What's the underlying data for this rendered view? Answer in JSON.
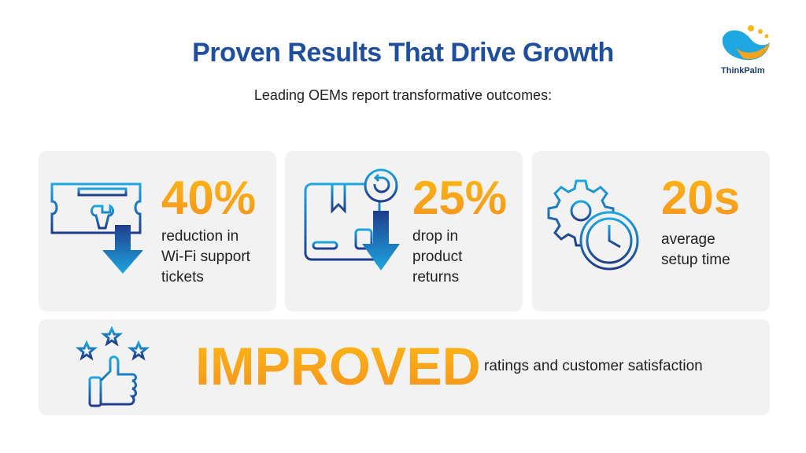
{
  "header": {
    "title": "Proven Results That Drive Growth",
    "subtitle": "Leading OEMs report transformative outcomes:"
  },
  "logo": {
    "text": "ThinkPalm"
  },
  "cards": [
    {
      "stat": "40%",
      "lines": [
        "reduction in",
        "Wi-Fi support",
        "tickets"
      ]
    },
    {
      "stat": "25%",
      "lines": [
        "drop in",
        "product",
        "returns"
      ]
    },
    {
      "stat": "20s",
      "lines": [
        "average",
        "setup time"
      ]
    }
  ],
  "banner": {
    "headline": "IMPROVED",
    "text": "ratings and customer satisfaction"
  }
}
